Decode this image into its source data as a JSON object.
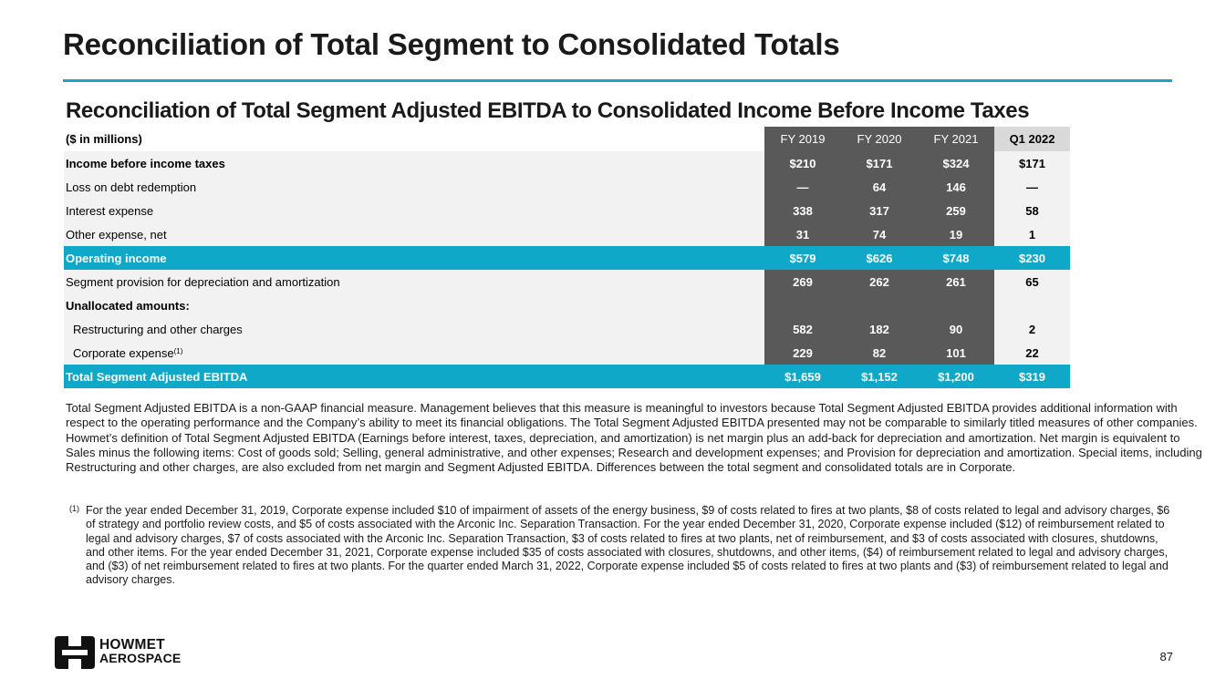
{
  "page": {
    "title": "Reconciliation of Total Segment to Consolidated Totals",
    "number": "87"
  },
  "table": {
    "title": "Reconciliation of Total Segment Adjusted EBITDA to Consolidated Income Before Income Taxes",
    "unit_label": "($ in millions)",
    "columns": [
      "FY 2019",
      "FY 2020",
      "FY 2021",
      "Q1 2022"
    ],
    "rows": [
      {
        "label": "Income before income taxes",
        "values": [
          "$210",
          "$171",
          "$324",
          "$171"
        ]
      },
      {
        "label": "Loss on debt redemption",
        "values": [
          "—",
          "64",
          "146",
          "—"
        ]
      },
      {
        "label": "Interest expense",
        "values": [
          "338",
          "317",
          "259",
          "58"
        ]
      },
      {
        "label": "Other expense, net",
        "values": [
          "31",
          "74",
          "19",
          "1"
        ]
      },
      {
        "label": "Operating income",
        "values": [
          "$579",
          "$626",
          "$748",
          "$230"
        ]
      },
      {
        "label": "Segment provision for depreciation and amortization",
        "values": [
          "269",
          "262",
          "261",
          "65"
        ]
      },
      {
        "label": "Unallocated amounts:",
        "values": [
          "",
          "",
          "",
          ""
        ]
      },
      {
        "label": "Restructuring and other charges",
        "values": [
          "582",
          "182",
          "90",
          "2"
        ]
      },
      {
        "label": "Corporate expense",
        "footnote_ref": "(1)",
        "values": [
          "229",
          "82",
          "101",
          "22"
        ]
      },
      {
        "label": "Total Segment Adjusted EBITDA",
        "values": [
          "$1,659",
          "$1,152",
          "$1,200",
          "$319"
        ]
      }
    ]
  },
  "notes": {
    "paragraph": "Total Segment Adjusted EBITDA is a non-GAAP financial measure. Management believes that this measure is meaningful to investors because Total Segment Adjusted EBITDA provides additional information with respect to the operating performance and the Company’s ability to meet its financial obligations. The Total Segment Adjusted EBITDA presented may not be comparable to similarly titled measures of other companies. Howmet’s definition of Total Segment Adjusted EBITDA (Earnings before interest, taxes, depreciation, and amortization) is net margin plus an add-back for depreciation and amortization. Net margin is equivalent to Sales minus the following items: Cost of goods sold; Selling, general administrative, and other expenses; Research and development expenses; and Provision for depreciation and amortization. Special items, including Restructuring and other charges, are also excluded from net margin and Segment Adjusted EBITDA. Differences between the total segment and consolidated totals are in Corporate.",
    "footnote_marker": "(1)",
    "footnote": "For the year ended December 31, 2019, Corporate expense included $10 of impairment of assets of the energy business, $9 of costs related to fires at two plants, $8 of costs related to legal and advisory charges, $6 of strategy and portfolio review costs, and $5 of costs associated with the Arconic Inc. Separation Transaction. For the year ended December 31, 2020, Corporate expense included ($12) of reimbursement related to legal and advisory charges, $7 of costs associated with the Arconic Inc. Separation Transaction, $3 of costs related to fires at two plants, net of reimbursement, and $3 of costs associated with closures, shutdowns, and other items. For the year ended December 31, 2021, Corporate expense included $35 of costs associated with closures, shutdowns, and other items, ($4) of reimbursement related to legal and advisory charges, and ($3) of net reimbursement related to fires at two plants. For the quarter ended March 31, 2022, Corporate expense included $5 of costs related to fires at two plants and ($3) of reimbursement related to legal and advisory charges."
  },
  "logo": {
    "line1": "HOWMET",
    "line2": "AEROSPACE"
  },
  "colors": {
    "accent": "#0fa8c9",
    "dark_column": "#595959",
    "row_bg": "#f2f2f2",
    "q1_header": "#d9d9d9"
  }
}
